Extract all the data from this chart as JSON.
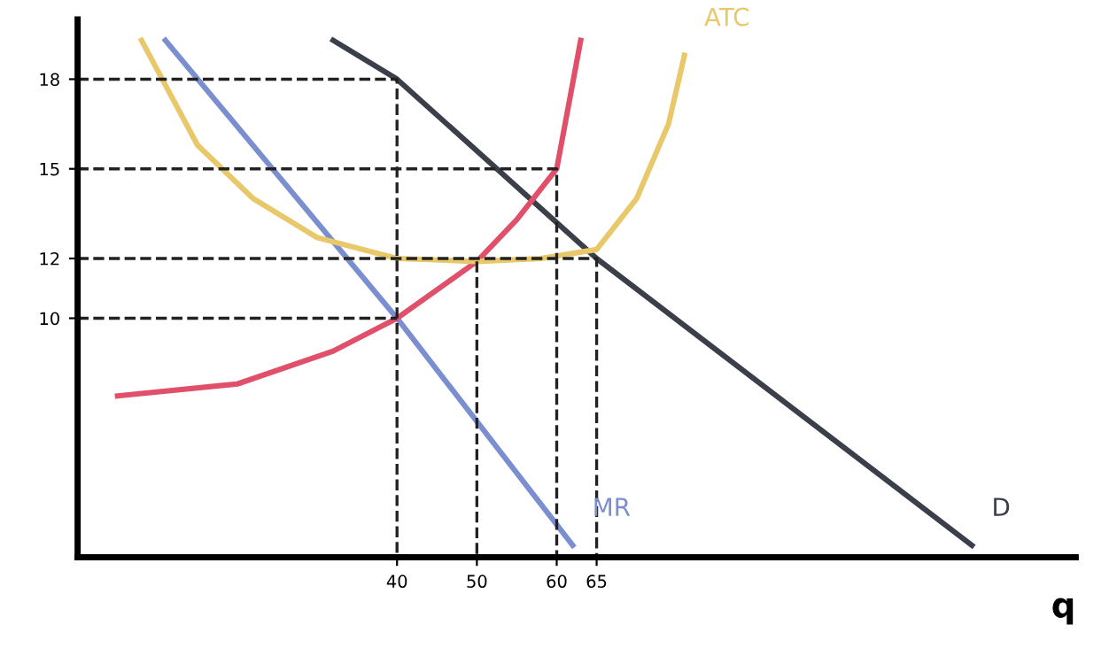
{
  "chart_data": {
    "type": "line",
    "xlabel": "q",
    "xlim": [
      0,
      125
    ],
    "ylim": [
      2,
      20
    ],
    "xticks": [
      40,
      50,
      60,
      65
    ],
    "yticks": [
      10,
      12,
      15,
      18
    ],
    "grid": false,
    "legend": false,
    "marker": "none",
    "series": [
      {
        "name": "D",
        "color": "#3a3f4a",
        "x": [
          32,
          40,
          65,
          112
        ],
        "values": [
          19.3,
          18,
          12,
          2.4
        ]
      },
      {
        "name": "MR",
        "color": "#7b8fd0",
        "x": [
          11,
          40,
          62
        ],
        "values": [
          19.3,
          10,
          2.4
        ]
      },
      {
        "color": "#e0506a",
        "x": [
          5,
          20,
          32,
          40,
          50,
          55,
          60,
          63
        ],
        "values": [
          7.4,
          7.8,
          8.9,
          10,
          11.9,
          13.3,
          15,
          19.3
        ]
      },
      {
        "name": "ATC",
        "color": "#e8c86a",
        "x": [
          8,
          15,
          22,
          30,
          40,
          50,
          58,
          65,
          70,
          74,
          76
        ],
        "values": [
          19.3,
          15.8,
          14,
          12.7,
          12,
          11.9,
          12,
          12.3,
          14,
          16.5,
          18.8
        ]
      },
      {
        "color": "#222222",
        "line_style": "dashed",
        "x": [
          0,
          40,
          40
        ],
        "values": [
          18,
          18,
          2
        ]
      },
      {
        "color": "#222222",
        "line_style": "dashed",
        "x": [
          0,
          60,
          60
        ],
        "values": [
          15,
          15,
          2
        ]
      },
      {
        "color": "#222222",
        "line_style": "dashed",
        "x": [
          0,
          65,
          65
        ],
        "values": [
          12,
          12,
          2
        ]
      },
      {
        "color": "#222222",
        "line_style": "dashed",
        "x": [
          0,
          40
        ],
        "values": [
          10,
          10
        ]
      },
      {
        "color": "#222222",
        "line_style": "dashed",
        "x": [
          50,
          50
        ],
        "values": [
          11.9,
          2
        ]
      }
    ]
  }
}
